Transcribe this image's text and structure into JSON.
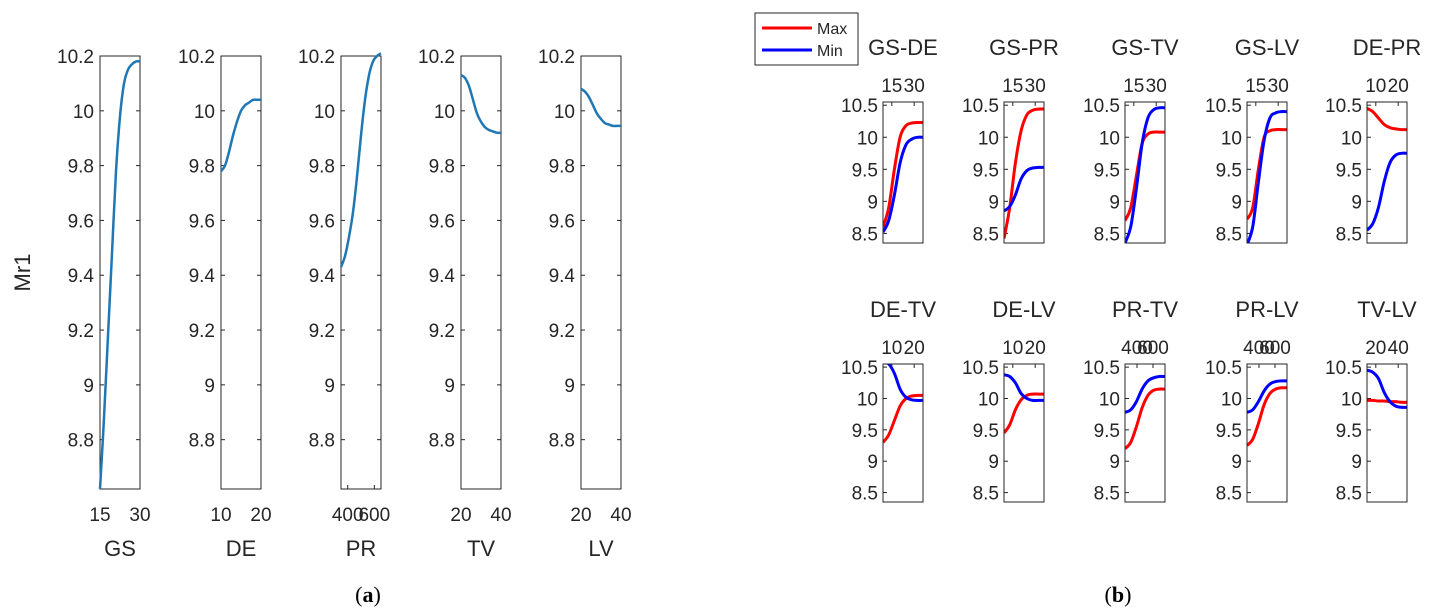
{
  "figure": {
    "caption_a_letter": "a",
    "caption_b_letter": "b",
    "colors": {
      "single": "#1f77b4",
      "max": "#ff0000",
      "min": "#0000ff",
      "axis": "#262626"
    }
  },
  "chart_data": [
    {
      "type": "line",
      "panel": "a",
      "ylabel": "Mr1",
      "ylim": [
        8.62,
        10.2
      ],
      "yticks": [
        "10.2",
        "10",
        "9.8",
        "9.6",
        "9.4",
        "9.2",
        "9",
        "8.8"
      ],
      "ytick_values": [
        10.2,
        10.0,
        9.8,
        9.6,
        9.4,
        9.2,
        9.0,
        8.8
      ],
      "subplots": [
        {
          "xlabel": "GS",
          "xlim": [
            15,
            30
          ],
          "xticks": [
            "15",
            "30"
          ],
          "xtick_values": [
            15,
            30
          ],
          "series": [
            {
              "name": "Mr1",
              "x": [
                15,
                16.5,
                18,
                19.5,
                21,
                22.5,
                24,
                25.5,
                27,
                28.5,
                30
              ],
              "y": [
                8.62,
                8.88,
                9.18,
                9.48,
                9.78,
                9.98,
                10.1,
                10.15,
                10.17,
                10.18,
                10.18
              ]
            }
          ]
        },
        {
          "xlabel": "DE",
          "xlim": [
            10,
            20
          ],
          "xticks": [
            "10",
            "20"
          ],
          "xtick_values": [
            10,
            20
          ],
          "series": [
            {
              "name": "Mr1",
              "x": [
                10,
                11,
                12,
                13,
                14,
                15,
                16,
                17,
                18,
                19,
                20
              ],
              "y": [
                9.78,
                9.8,
                9.85,
                9.91,
                9.96,
                10.0,
                10.02,
                10.03,
                10.04,
                10.04,
                10.04
              ]
            }
          ]
        },
        {
          "xlabel": "PR",
          "xlim": [
            350,
            650
          ],
          "xticks": [
            "400",
            "600"
          ],
          "xtick_values": [
            400,
            600
          ],
          "series": [
            {
              "name": "Mr1",
              "x": [
                350,
                380,
                410,
                440,
                470,
                500,
                530,
                560,
                590,
                620,
                650
              ],
              "y": [
                9.43,
                9.47,
                9.54,
                9.63,
                9.76,
                9.91,
                10.04,
                10.13,
                10.18,
                10.2,
                10.21
              ]
            }
          ]
        },
        {
          "xlabel": "TV",
          "xlim": [
            20,
            40
          ],
          "xticks": [
            "20",
            "40"
          ],
          "xtick_values": [
            20,
            40
          ],
          "series": [
            {
              "name": "Mr1",
              "x": [
                20,
                22,
                24,
                26,
                28,
                30,
                32,
                34,
                36,
                38,
                40
              ],
              "y": [
                10.13,
                10.12,
                10.09,
                10.04,
                9.99,
                9.96,
                9.94,
                9.93,
                9.925,
                9.92,
                9.92
              ]
            }
          ]
        },
        {
          "xlabel": "LV",
          "xlim": [
            20,
            40
          ],
          "xticks": [
            "20",
            "40"
          ],
          "xtick_values": [
            20,
            40
          ],
          "series": [
            {
              "name": "Mr1",
              "x": [
                20,
                22,
                24,
                26,
                28,
                30,
                32,
                34,
                36,
                38,
                40
              ],
              "y": [
                10.08,
                10.07,
                10.05,
                10.02,
                9.99,
                9.97,
                9.955,
                9.95,
                9.945,
                9.945,
                9.945
              ]
            }
          ]
        }
      ]
    },
    {
      "type": "line",
      "panel": "b",
      "legend": [
        {
          "label": "Max",
          "color": "#ff0000"
        },
        {
          "label": "Min",
          "color": "#0000ff"
        }
      ],
      "ylim": [
        8.35,
        10.55
      ],
      "yticks": [
        "10.5",
        "10",
        "9.5",
        "9",
        "8.5"
      ],
      "ytick_values": [
        10.5,
        10.0,
        9.5,
        9.0,
        8.5
      ],
      "subplots": [
        {
          "title": "GS-DE",
          "xticks": [
            "15",
            "30"
          ],
          "xtick_pos": [
            0.22,
            0.78
          ],
          "series": [
            {
              "name": "Max",
              "y": [
                8.6,
                8.9,
                9.5,
                10.0,
                10.18,
                10.22,
                10.23,
                10.23
              ]
            },
            {
              "name": "Min",
              "y": [
                8.52,
                8.7,
                9.1,
                9.6,
                9.88,
                9.97,
                10.0,
                10.0
              ]
            }
          ]
        },
        {
          "title": "GS-PR",
          "xticks": [
            "15",
            "30"
          ],
          "xtick_pos": [
            0.22,
            0.78
          ],
          "series": [
            {
              "name": "Max",
              "y": [
                8.42,
                8.9,
                9.6,
                10.1,
                10.35,
                10.42,
                10.44,
                10.44
              ]
            },
            {
              "name": "Min",
              "y": [
                8.85,
                8.92,
                9.1,
                9.35,
                9.48,
                9.52,
                9.53,
                9.53
              ]
            }
          ]
        },
        {
          "title": "GS-TV",
          "xticks": [
            "15",
            "30"
          ],
          "xtick_pos": [
            0.22,
            0.78
          ],
          "series": [
            {
              "name": "Max",
              "y": [
                8.7,
                8.9,
                9.4,
                9.9,
                10.05,
                10.08,
                10.08,
                10.08
              ]
            },
            {
              "name": "Min",
              "y": [
                8.35,
                8.6,
                9.2,
                9.9,
                10.3,
                10.43,
                10.46,
                10.46
              ]
            }
          ]
        },
        {
          "title": "GS-LV",
          "xticks": [
            "15",
            "30"
          ],
          "xtick_pos": [
            0.22,
            0.78
          ],
          "series": [
            {
              "name": "Max",
              "y": [
                8.72,
                8.9,
                9.5,
                10.0,
                10.1,
                10.12,
                10.12,
                10.12
              ]
            },
            {
              "name": "Min",
              "y": [
                8.32,
                8.6,
                9.3,
                9.95,
                10.3,
                10.38,
                10.4,
                10.4
              ]
            }
          ]
        },
        {
          "title": "DE-PR",
          "xticks": [
            "10",
            "20"
          ],
          "xtick_pos": [
            0.22,
            0.78
          ],
          "series": [
            {
              "name": "Max",
              "y": [
                10.45,
                10.4,
                10.3,
                10.2,
                10.15,
                10.13,
                10.12,
                10.12
              ]
            },
            {
              "name": "Min",
              "y": [
                8.55,
                8.65,
                8.9,
                9.3,
                9.6,
                9.72,
                9.75,
                9.75
              ]
            }
          ]
        },
        {
          "title": "DE-TV",
          "xticks": [
            "10",
            "20"
          ],
          "xtick_pos": [
            0.22,
            0.78
          ],
          "series": [
            {
              "name": "Max",
              "y": [
                9.3,
                9.42,
                9.65,
                9.88,
                10.0,
                10.04,
                10.05,
                10.05
              ]
            },
            {
              "name": "Min",
              "y": [
                10.58,
                10.55,
                10.4,
                10.15,
                10.02,
                9.98,
                9.97,
                9.97
              ]
            }
          ]
        },
        {
          "title": "DE-LV",
          "xticks": [
            "10",
            "20"
          ],
          "xtick_pos": [
            0.22,
            0.78
          ],
          "series": [
            {
              "name": "Max",
              "y": [
                9.45,
                9.58,
                9.82,
                9.98,
                10.05,
                10.07,
                10.07,
                10.07
              ]
            },
            {
              "name": "Min",
              "y": [
                10.38,
                10.35,
                10.25,
                10.08,
                10.0,
                9.97,
                9.97,
                9.97
              ]
            }
          ]
        },
        {
          "title": "PR-TV",
          "xticks": [
            "400",
            "600"
          ],
          "xtick_pos": [
            0.3,
            0.7
          ],
          "series": [
            {
              "name": "Max",
              "y": [
                9.2,
                9.3,
                9.55,
                9.85,
                10.05,
                10.13,
                10.15,
                10.15
              ]
            },
            {
              "name": "Min",
              "y": [
                9.78,
                9.82,
                9.95,
                10.15,
                10.28,
                10.33,
                10.35,
                10.35
              ]
            }
          ]
        },
        {
          "title": "PR-LV",
          "xticks": [
            "400",
            "600"
          ],
          "xtick_pos": [
            0.3,
            0.7
          ],
          "series": [
            {
              "name": "Max",
              "y": [
                9.25,
                9.35,
                9.6,
                9.9,
                10.08,
                10.15,
                10.17,
                10.17
              ]
            },
            {
              "name": "Min",
              "y": [
                9.78,
                9.82,
                9.95,
                10.12,
                10.23,
                10.27,
                10.28,
                10.28
              ]
            }
          ]
        },
        {
          "title": "TV-LV",
          "xticks": [
            "20",
            "40"
          ],
          "xtick_pos": [
            0.22,
            0.78
          ],
          "series": [
            {
              "name": "Max",
              "y": [
                9.97,
                9.97,
                9.96,
                9.96,
                9.95,
                9.95,
                9.94,
                9.94
              ]
            },
            {
              "name": "Min",
              "y": [
                10.45,
                10.42,
                10.32,
                10.1,
                9.95,
                9.88,
                9.86,
                9.86
              ]
            }
          ]
        }
      ]
    }
  ]
}
